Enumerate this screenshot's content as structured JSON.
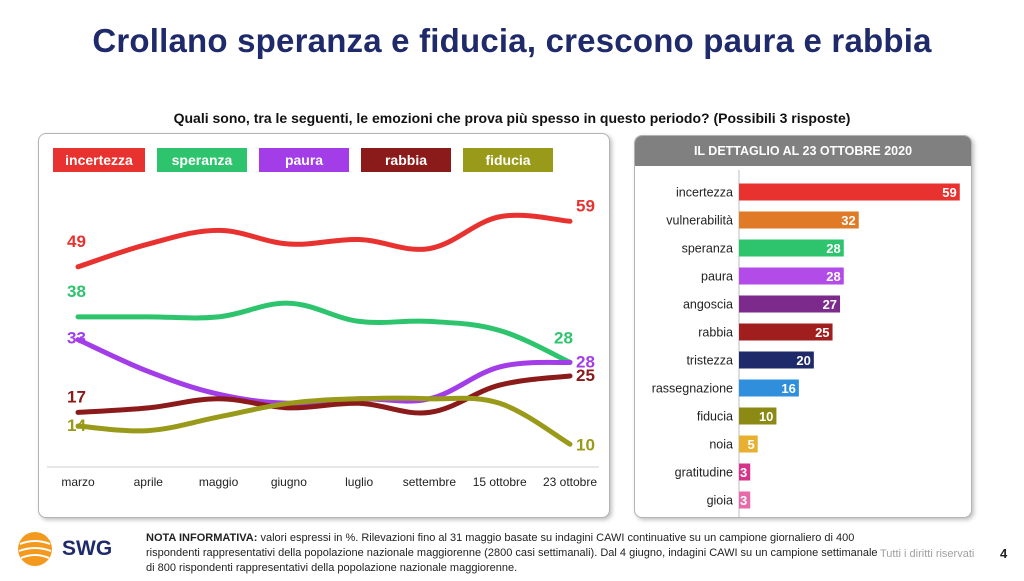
{
  "title": "Crollano speranza e fiducia, crescono paura e rabbia",
  "subtitle": "Quali sono, tra le seguenti, le emozioni che prova più spesso in questo periodo? (Possibili 3 risposte)",
  "chart_data": [
    {
      "type": "line",
      "x": [
        "marzo",
        "aprile",
        "maggio",
        "giugno",
        "luglio",
        "settembre",
        "15 ottobre",
        "23 ottobre"
      ],
      "series": [
        {
          "name": "incertezza",
          "color": "#e8322f",
          "values": [
            49,
            54,
            57,
            54,
            55,
            53,
            60,
            59
          ],
          "start_label": "49",
          "end_label": "59"
        },
        {
          "name": "speranza",
          "color": "#2ec46e",
          "values": [
            38,
            38,
            38,
            41,
            37,
            37,
            35,
            28
          ],
          "start_label": "38",
          "end_label": "28"
        },
        {
          "name": "paura",
          "color": "#a23de8",
          "values": [
            33,
            26,
            21,
            19,
            20,
            20,
            27,
            28
          ],
          "start_label": "33",
          "end_label": "28"
        },
        {
          "name": "rabbia",
          "color": "#8b1a1a",
          "values": [
            17,
            18,
            20,
            18,
            19,
            17,
            23,
            25
          ],
          "start_label": "17",
          "end_label": "25"
        },
        {
          "name": "fiducia",
          "color": "#9a9a1a",
          "values": [
            14,
            13,
            16,
            19,
            20,
            20,
            19,
            10
          ],
          "start_label": "14",
          "end_label": "10"
        }
      ],
      "ylim": [
        5,
        65
      ]
    },
    {
      "type": "bar",
      "title": "IL DETTAGLIO AL 23 OTTOBRE 2020",
      "categories": [
        "incertezza",
        "vulnerabilità",
        "speranza",
        "paura",
        "angoscia",
        "rabbia",
        "tristezza",
        "rassegnazione",
        "fiducia",
        "noia",
        "gratitudine",
        "gioia"
      ],
      "values": [
        59,
        32,
        28,
        28,
        27,
        25,
        20,
        16,
        10,
        5,
        3,
        3
      ],
      "colors": [
        "#e8322f",
        "#e07a26",
        "#2ec46e",
        "#b24be8",
        "#7c2a8c",
        "#a01e1e",
        "#1f2a6b",
        "#2f8fdc",
        "#8a8a14",
        "#e8b030",
        "#d6338a",
        "#e86aa8"
      ],
      "xlim": [
        0,
        62
      ]
    }
  ],
  "footer": {
    "note_label": "NOTA INFORMATIVA:",
    "note_text": " valori espressi in %. Rilevazioni fino al 31 maggio basate su indagini CAWI continuative su un campione giornaliero di 400 rispondenti rappresentativi della popolazione nazionale maggiorenne (2800 casi settimanali). Dal 4 giugno, indagini CAWI su un campione settimanale di 800 rispondenti rappresentativi della popolazione nazionale maggiorenne.",
    "logo_text": "SWG",
    "rights": "Tutti i diritti riservati",
    "page": "4"
  }
}
